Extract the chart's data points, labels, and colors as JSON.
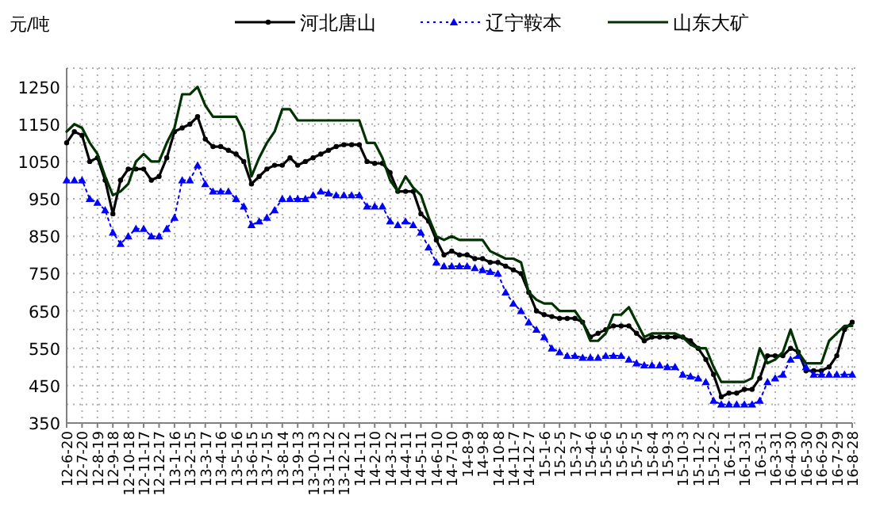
{
  "chart_data": {
    "type": "line",
    "ylabel": "元/吨",
    "legend": "top",
    "grid": true,
    "xlim": [
      "2012-06-20",
      "2016-08-28"
    ],
    "xticks": [
      {
        "value": "2012-06-20",
        "label": "12-6-20"
      },
      {
        "value": "2012-07-20",
        "label": "12-7-20"
      },
      {
        "value": "2012-08-19",
        "label": "12-8-19"
      },
      {
        "value": "2012-09-18",
        "label": "12-9-18"
      },
      {
        "value": "2012-10-18",
        "label": "12-10-18"
      },
      {
        "value": "2012-11-17",
        "label": "12-11-17"
      },
      {
        "value": "2012-12-17",
        "label": "12-12-17"
      },
      {
        "value": "2013-01-16",
        "label": "13-1-16"
      },
      {
        "value": "2013-02-15",
        "label": "13-2-15"
      },
      {
        "value": "2013-03-17",
        "label": "13-3-17"
      },
      {
        "value": "2013-04-16",
        "label": "13-4-16"
      },
      {
        "value": "2013-05-16",
        "label": "13-5-16"
      },
      {
        "value": "2013-06-15",
        "label": "13-6-15"
      },
      {
        "value": "2013-07-15",
        "label": "13-7-15"
      },
      {
        "value": "2013-08-14",
        "label": "13-8-14"
      },
      {
        "value": "2013-09-13",
        "label": "13-9-13"
      },
      {
        "value": "2013-10-13",
        "label": "13-10-13"
      },
      {
        "value": "2013-11-12",
        "label": "13-11-12"
      },
      {
        "value": "2013-12-12",
        "label": "13-12-12"
      },
      {
        "value": "2014-01-11",
        "label": "14-1-11"
      },
      {
        "value": "2014-02-10",
        "label": "14-2-10"
      },
      {
        "value": "2014-03-12",
        "label": "14-3-12"
      },
      {
        "value": "2014-04-11",
        "label": "14-4-11"
      },
      {
        "value": "2014-05-11",
        "label": "14-5-11"
      },
      {
        "value": "2014-06-10",
        "label": "14-6-10"
      },
      {
        "value": "2014-07-10",
        "label": "14-7-10"
      },
      {
        "value": "2014-08-09",
        "label": "14-8-9"
      },
      {
        "value": "2014-09-08",
        "label": "14-9-8"
      },
      {
        "value": "2014-10-08",
        "label": "14-10-8"
      },
      {
        "value": "2014-11-07",
        "label": "14-11-7"
      },
      {
        "value": "2014-12-07",
        "label": "14-12-7"
      },
      {
        "value": "2015-01-06",
        "label": "15-1-6"
      },
      {
        "value": "2015-02-05",
        "label": "15-2-5"
      },
      {
        "value": "2015-03-07",
        "label": "15-3-7"
      },
      {
        "value": "2015-04-06",
        "label": "15-4-6"
      },
      {
        "value": "2015-05-06",
        "label": "15-5-6"
      },
      {
        "value": "2015-06-05",
        "label": "15-6-5"
      },
      {
        "value": "2015-07-05",
        "label": "15-7-5"
      },
      {
        "value": "2015-08-04",
        "label": "15-8-4"
      },
      {
        "value": "2015-09-03",
        "label": "15-9-3"
      },
      {
        "value": "2015-10-03",
        "label": "15-10-3"
      },
      {
        "value": "2015-11-02",
        "label": "15-11-2"
      },
      {
        "value": "2015-12-02",
        "label": "15-12-2"
      },
      {
        "value": "2016-01-01",
        "label": "16-1-1"
      },
      {
        "value": "2016-01-31",
        "label": "16-1-31"
      },
      {
        "value": "2016-03-01",
        "label": "16-3-1"
      },
      {
        "value": "2016-03-31",
        "label": "16-3-31"
      },
      {
        "value": "2016-04-30",
        "label": "16-4-30"
      },
      {
        "value": "2016-05-30",
        "label": "16-5-30"
      },
      {
        "value": "2016-06-29",
        "label": "16-6-29"
      },
      {
        "value": "2016-07-29",
        "label": "16-7-29"
      },
      {
        "value": "2016-08-28",
        "label": "16-8-28"
      }
    ],
    "ylim": [
      350,
      1300
    ],
    "yticks": [
      350,
      {
        "value": 400,
        "label": null
      },
      450,
      {
        "value": 500,
        "label": null
      },
      550,
      {
        "value": 600,
        "label": null
      },
      650,
      {
        "value": 700,
        "label": null
      },
      750,
      {
        "value": 800,
        "label": null
      },
      850,
      {
        "value": 900,
        "label": null
      },
      950,
      {
        "value": 1000,
        "label": null
      },
      1050,
      {
        "value": 1100,
        "label": null
      },
      1150,
      {
        "value": 1200,
        "label": null
      },
      1250,
      {
        "value": 1300,
        "label": null
      }
    ],
    "x": [
      "2012-06-20",
      "2012-07-05",
      "2012-07-20",
      "2012-08-04",
      "2012-08-19",
      "2012-09-03",
      "2012-09-18",
      "2012-10-03",
      "2012-10-18",
      "2012-11-02",
      "2012-11-17",
      "2012-12-02",
      "2012-12-17",
      "2013-01-01",
      "2013-01-16",
      "2013-01-31",
      "2013-02-15",
      "2013-03-02",
      "2013-03-17",
      "2013-04-01",
      "2013-04-16",
      "2013-05-01",
      "2013-05-16",
      "2013-05-31",
      "2013-06-15",
      "2013-06-30",
      "2013-07-15",
      "2013-07-30",
      "2013-08-14",
      "2013-08-29",
      "2013-09-13",
      "2013-09-28",
      "2013-10-13",
      "2013-10-28",
      "2013-11-12",
      "2013-11-27",
      "2013-12-12",
      "2013-12-27",
      "2014-01-11",
      "2014-01-26",
      "2014-02-10",
      "2014-02-25",
      "2014-03-12",
      "2014-03-27",
      "2014-04-11",
      "2014-04-26",
      "2014-05-11",
      "2014-05-26",
      "2014-06-10",
      "2014-06-25",
      "2014-07-10",
      "2014-07-25",
      "2014-08-09",
      "2014-08-24",
      "2014-09-08",
      "2014-09-23",
      "2014-10-08",
      "2014-10-23",
      "2014-11-07",
      "2014-11-22",
      "2014-12-07",
      "2014-12-22",
      "2015-01-06",
      "2015-01-21",
      "2015-02-05",
      "2015-02-20",
      "2015-03-07",
      "2015-03-22",
      "2015-04-06",
      "2015-04-21",
      "2015-05-06",
      "2015-05-21",
      "2015-06-05",
      "2015-06-20",
      "2015-07-05",
      "2015-07-20",
      "2015-08-04",
      "2015-08-19",
      "2015-09-03",
      "2015-09-18",
      "2015-10-03",
      "2015-10-18",
      "2015-11-02",
      "2015-11-17",
      "2015-12-02",
      "2015-12-17",
      "2016-01-01",
      "2016-01-16",
      "2016-01-31",
      "2016-02-15",
      "2016-03-01",
      "2016-03-16",
      "2016-03-31",
      "2016-04-15",
      "2016-04-30",
      "2016-05-15",
      "2016-05-30",
      "2016-06-14",
      "2016-06-29",
      "2016-07-14",
      "2016-07-29",
      "2016-08-13",
      "2016-08-28"
    ],
    "series": [
      {
        "name": "河北唐山",
        "color": "#000000",
        "marker": "circle",
        "line_style": "solid",
        "values": [
          1100,
          1130,
          1120,
          1050,
          1060,
          1000,
          910,
          1000,
          1030,
          1030,
          1030,
          1000,
          1010,
          1060,
          1130,
          1140,
          1150,
          1170,
          1110,
          1090,
          1090,
          1080,
          1070,
          1050,
          990,
          1010,
          1030,
          1040,
          1040,
          1060,
          1040,
          1050,
          1060,
          1070,
          1080,
          1090,
          1095,
          1095,
          1095,
          1050,
          1045,
          1045,
          1020,
          970,
          970,
          970,
          910,
          890,
          840,
          800,
          810,
          800,
          800,
          790,
          790,
          780,
          780,
          770,
          760,
          750,
          700,
          650,
          640,
          635,
          630,
          630,
          630,
          620,
          580,
          590,
          600,
          610,
          610,
          610,
          590,
          570,
          580,
          580,
          580,
          580,
          580,
          570,
          550,
          520,
          480,
          420,
          430,
          430,
          440,
          440,
          470,
          530,
          530,
          530,
          550,
          540,
          490,
          490,
          490,
          500,
          530,
          600,
          620
        ]
      },
      {
        "name": "辽宁鞍本",
        "color": "#0000ff",
        "marker": "triangle",
        "line_style": "dotted",
        "values": [
          1000,
          1000,
          1000,
          950,
          940,
          920,
          860,
          830,
          850,
          870,
          870,
          850,
          850,
          870,
          900,
          1000,
          1000,
          1040,
          990,
          970,
          970,
          970,
          950,
          930,
          880,
          890,
          900,
          920,
          950,
          950,
          950,
          950,
          960,
          970,
          965,
          960,
          960,
          960,
          960,
          930,
          930,
          930,
          890,
          880,
          890,
          880,
          860,
          820,
          780,
          770,
          770,
          770,
          770,
          765,
          760,
          755,
          750,
          700,
          670,
          650,
          620,
          600,
          580,
          550,
          540,
          530,
          530,
          525,
          525,
          525,
          530,
          530,
          530,
          520,
          510,
          505,
          505,
          505,
          500,
          500,
          480,
          475,
          470,
          460,
          410,
          400,
          400,
          400,
          400,
          400,
          410,
          460,
          470,
          480,
          520,
          530,
          500,
          480,
          480,
          480,
          480,
          480,
          480
        ]
      },
      {
        "name": "山东大矿",
        "color": "#003300",
        "marker": "none",
        "line_style": "solid",
        "values": [
          1130,
          1150,
          1140,
          1100,
          1070,
          1010,
          960,
          970,
          990,
          1050,
          1070,
          1050,
          1050,
          1100,
          1140,
          1230,
          1230,
          1250,
          1200,
          1170,
          1170,
          1170,
          1170,
          1130,
          1010,
          1060,
          1100,
          1130,
          1190,
          1190,
          1160,
          1160,
          1160,
          1160,
          1160,
          1160,
          1160,
          1160,
          1160,
          1100,
          1100,
          1060,
          1000,
          970,
          1010,
          980,
          960,
          900,
          850,
          840,
          850,
          840,
          840,
          840,
          840,
          810,
          800,
          790,
          790,
          780,
          700,
          680,
          670,
          670,
          650,
          650,
          650,
          620,
          570,
          570,
          590,
          640,
          640,
          660,
          620,
          580,
          590,
          590,
          590,
          590,
          580,
          560,
          550,
          550,
          500,
          460,
          460,
          460,
          460,
          470,
          550,
          510,
          520,
          540,
          600,
          540,
          510,
          510,
          510,
          570,
          590,
          610,
          610
        ]
      }
    ]
  }
}
